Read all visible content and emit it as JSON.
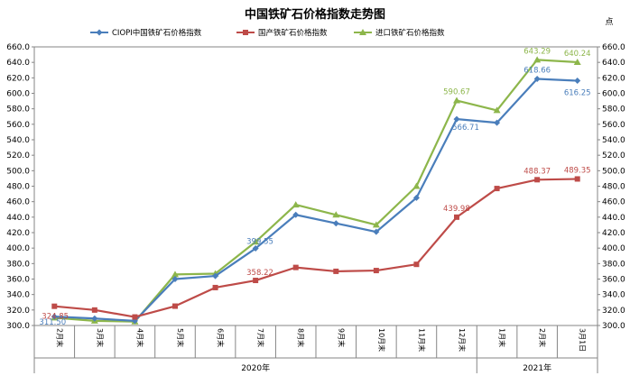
{
  "chart_data": {
    "type": "line",
    "title": "中国铁矿石价格指数走势图",
    "y_unit": "点",
    "ylim": [
      300,
      660
    ],
    "yticks": [
      "300.0",
      "320.0",
      "340.0",
      "360.0",
      "380.0",
      "400.0",
      "420.0",
      "440.0",
      "460.0",
      "480.0",
      "500.0",
      "520.0",
      "540.0",
      "560.0",
      "580.0",
      "600.0",
      "620.0",
      "640.0",
      "660.0"
    ],
    "categories": [
      "2月末",
      "3月末",
      "4月末",
      "5月末",
      "6月末",
      "7月末",
      "8月末",
      "9月末",
      "10月末",
      "11月末",
      "12月末",
      "1月末",
      "2月末",
      "3月1日"
    ],
    "year_groups": [
      {
        "label": "2020年",
        "count": 11
      },
      {
        "label": "2021年",
        "count": 3
      }
    ],
    "legend_position": "top",
    "series": [
      {
        "name": "CIOPI中国铁矿石价格指数",
        "color": "#4a7ebb",
        "marker": "diamond",
        "values": [
          311.5,
          309,
          306,
          360,
          364,
          399.55,
          443,
          432,
          421,
          465,
          566.71,
          562,
          618.66,
          616.25
        ],
        "labels": [
          "311.50",
          "",
          "",
          "",
          "",
          "399.55",
          "",
          "",
          "",
          "",
          "566.71",
          "",
          "618.66",
          "616.25"
        ]
      },
      {
        "name": "国产铁矿石价格指数",
        "color": "#be4b48",
        "marker": "square",
        "values": [
          324.85,
          320,
          311,
          325,
          349,
          358.22,
          375,
          370,
          371,
          379,
          439.98,
          477,
          488.37,
          489.35
        ],
        "labels": [
          "324.85",
          "",
          "",
          "",
          "",
          "358.22",
          "",
          "",
          "",
          "",
          "439.98",
          "",
          "488.37",
          "489.35"
        ]
      },
      {
        "name": "进口铁矿石价格指数",
        "color": "#8db64b",
        "marker": "triangle",
        "values": [
          310,
          306,
          305,
          366,
          367,
          408,
          456,
          443,
          430,
          480,
          590.67,
          578,
          643.29,
          640.24
        ],
        "labels": [
          "",
          "",
          "",
          "",
          "",
          "",
          "",
          "",
          "",
          "",
          "590.67",
          "",
          "643.29",
          "640.24"
        ]
      }
    ]
  }
}
